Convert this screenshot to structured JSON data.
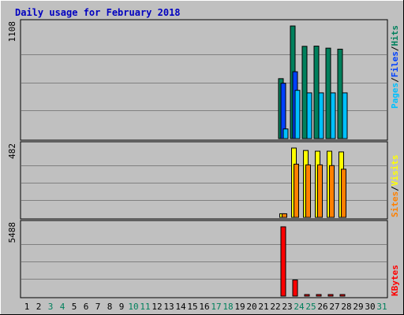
{
  "chart_data": {
    "type": "bar",
    "title": "Daily usage for February 2018",
    "categories": [
      "1",
      "2",
      "3",
      "4",
      "5",
      "6",
      "7",
      "8",
      "9",
      "10",
      "11",
      "12",
      "13",
      "14",
      "15",
      "16",
      "17",
      "18",
      "19",
      "20",
      "21",
      "22",
      "23",
      "24",
      "25",
      "26",
      "27",
      "28",
      "29",
      "30",
      "31"
    ],
    "weekend_days": [
      3,
      4,
      10,
      11,
      17,
      18,
      24,
      25,
      31
    ],
    "panels": [
      {
        "name": "top",
        "max_label": "1108",
        "ymax": 1108,
        "legend": [
          "Pages",
          "Files",
          "Hits"
        ],
        "legend_sep": "/",
        "series": [
          {
            "name": "Hits",
            "color": "#00805c",
            "values": [
              null,
              null,
              null,
              null,
              null,
              null,
              null,
              null,
              null,
              null,
              null,
              null,
              null,
              null,
              null,
              null,
              null,
              null,
              null,
              null,
              null,
              null,
              590,
              1108,
              908,
              910,
              890,
              880,
              null,
              null,
              null
            ]
          },
          {
            "name": "Files",
            "color": "#0040ff",
            "values": [
              null,
              null,
              null,
              null,
              null,
              null,
              null,
              null,
              null,
              null,
              null,
              null,
              null,
              null,
              null,
              null,
              null,
              null,
              null,
              null,
              null,
              null,
              545,
              658,
              null,
              null,
              null,
              null,
              null,
              null,
              null
            ]
          },
          {
            "name": "Pages",
            "color": "#00c0ff",
            "values": [
              null,
              null,
              null,
              null,
              null,
              null,
              null,
              null,
              null,
              null,
              null,
              null,
              null,
              null,
              null,
              null,
              null,
              null,
              null,
              null,
              null,
              null,
              95,
              475,
              450,
              450,
              450,
              450,
              null,
              null,
              null
            ]
          }
        ]
      },
      {
        "name": "middle",
        "max_label": "482",
        "ymax": 482,
        "legend": [
          "Sites",
          "Visits"
        ],
        "legend_sep": "/",
        "series": [
          {
            "name": "Visits",
            "color": "#ffff00",
            "values": [
              null,
              null,
              null,
              null,
              null,
              null,
              null,
              null,
              null,
              null,
              null,
              null,
              null,
              null,
              null,
              null,
              null,
              null,
              null,
              null,
              null,
              null,
              25,
              482,
              465,
              460,
              460,
              455,
              null,
              null,
              null
            ]
          },
          {
            "name": "Sites",
            "color": "#ff8000",
            "values": [
              null,
              null,
              null,
              null,
              null,
              null,
              null,
              null,
              null,
              null,
              null,
              null,
              null,
              null,
              null,
              null,
              null,
              null,
              null,
              null,
              null,
              null,
              25,
              370,
              365,
              365,
              360,
              335,
              null,
              null,
              null
            ]
          }
        ]
      },
      {
        "name": "bottom",
        "max_label": "5488",
        "ymax": 5488,
        "legend": [
          "KBytes"
        ],
        "legend_sep": "/",
        "series": [
          {
            "name": "KBytes",
            "color": "#ff0000",
            "values": [
              null,
              null,
              null,
              null,
              null,
              null,
              null,
              null,
              null,
              null,
              null,
              null,
              null,
              null,
              null,
              null,
              null,
              null,
              null,
              null,
              null,
              null,
              5488,
              1280,
              80,
              80,
              80,
              80,
              null,
              null,
              null
            ]
          }
        ]
      }
    ],
    "colors": {
      "background": "#c0c0c0",
      "grid": "#808080",
      "title": "#0000c0",
      "weekend_label": "#00805c",
      "weekday_label": "#000000"
    },
    "grid": true
  }
}
